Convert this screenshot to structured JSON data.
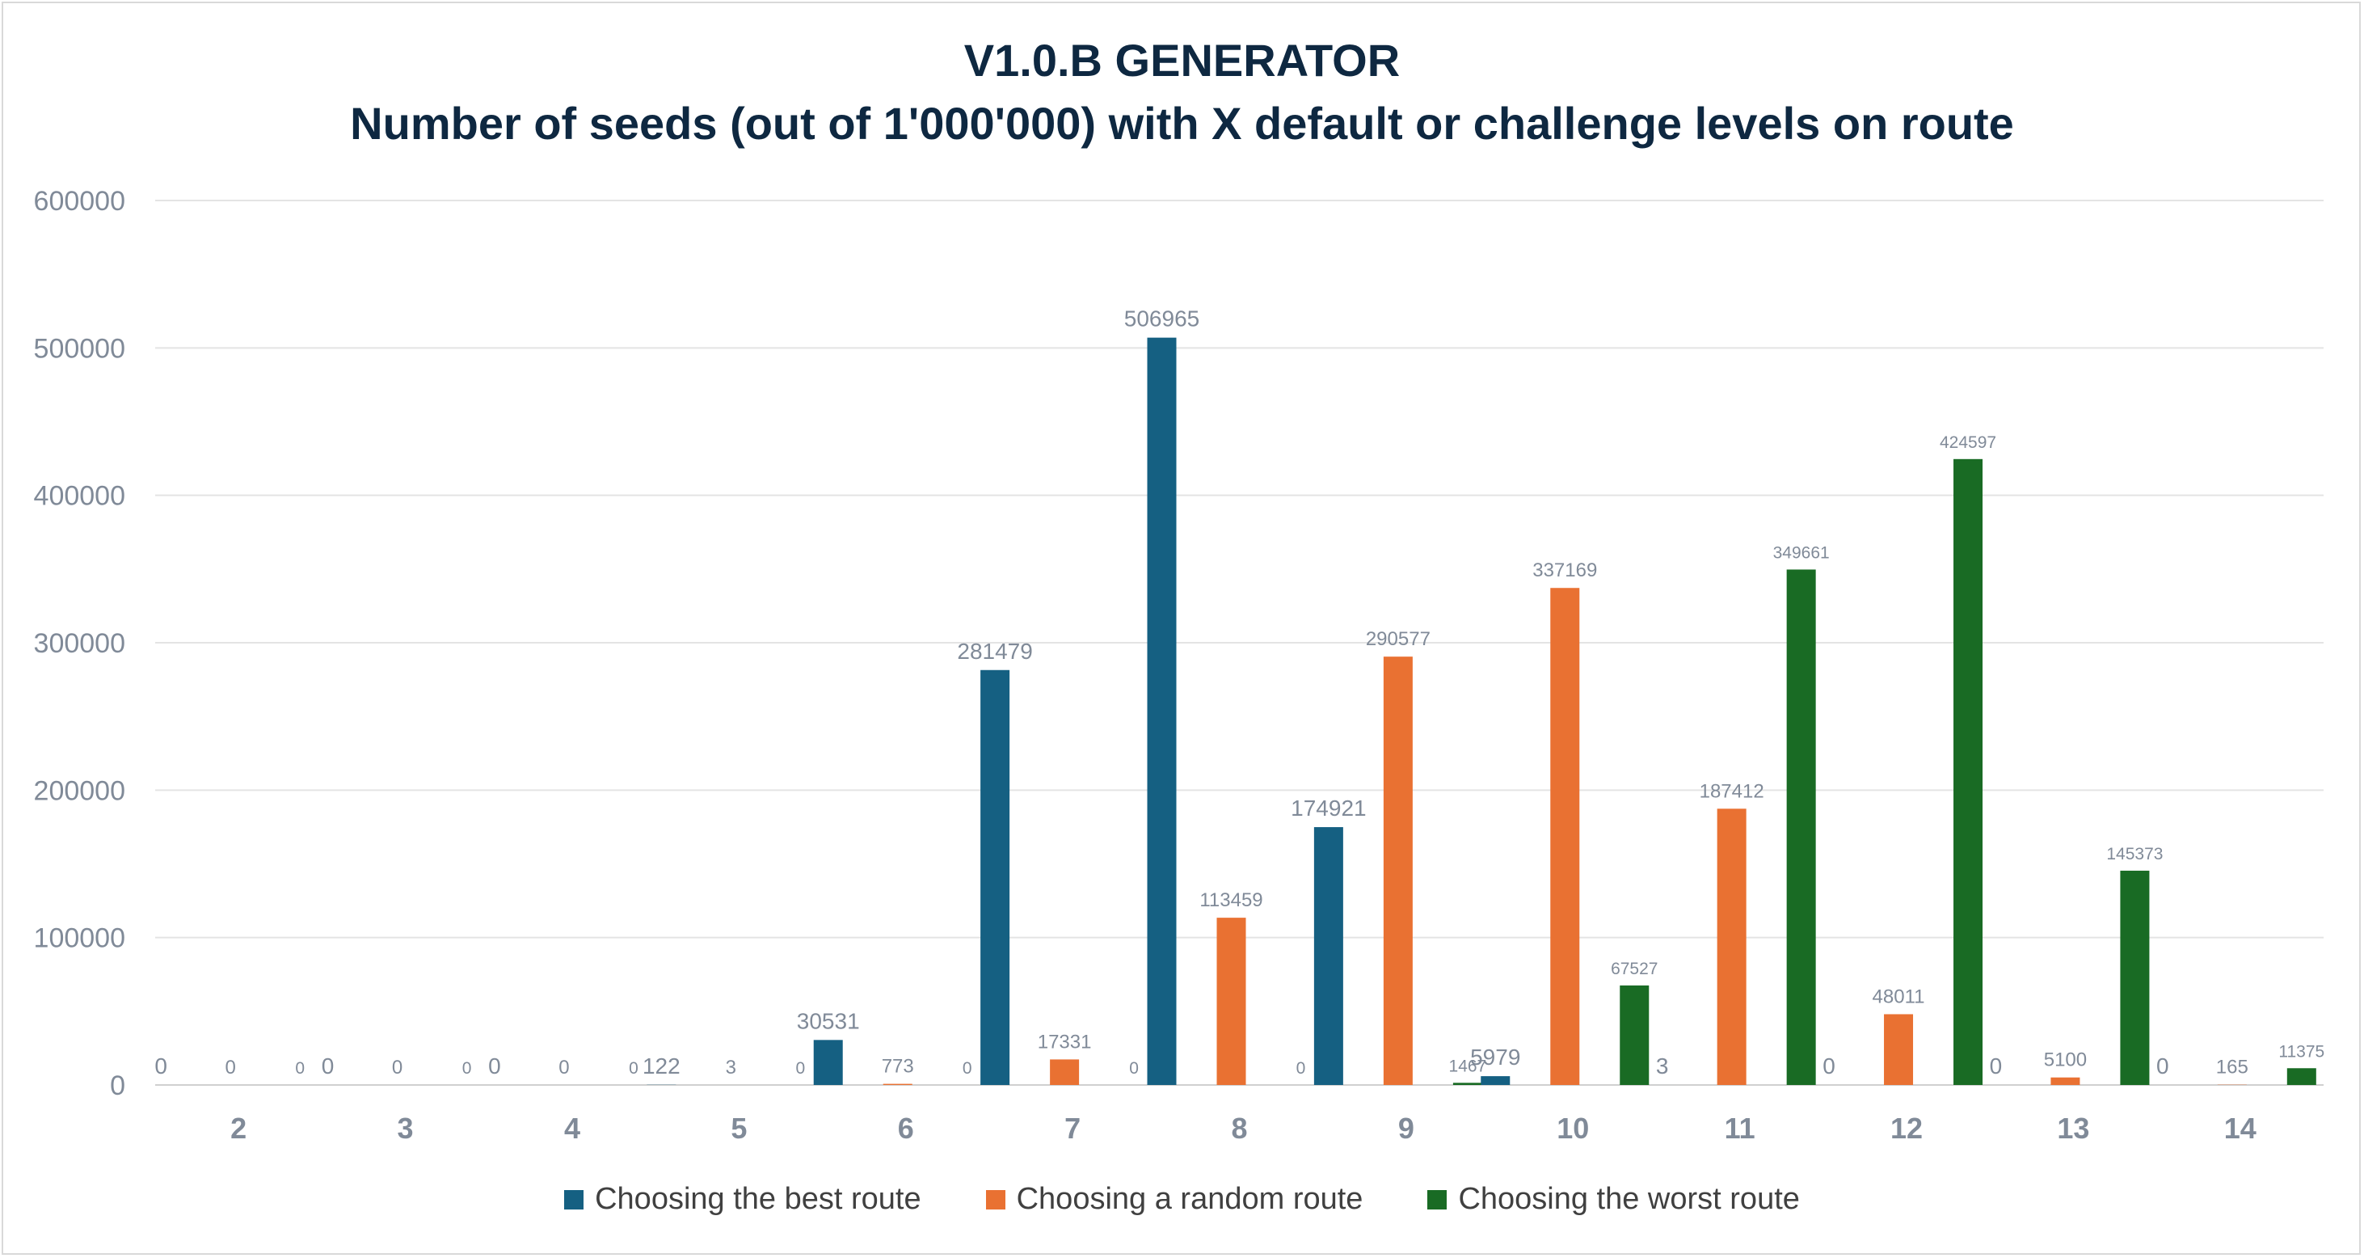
{
  "chart_data": {
    "type": "bar",
    "title": "V1.0.B GENERATOR",
    "subtitle": "Number of seeds (out of 1'000'000) with X default or challenge levels on route",
    "categories": [
      "2",
      "3",
      "4",
      "5",
      "6",
      "7",
      "8",
      "9",
      "10",
      "11",
      "12",
      "13",
      "14"
    ],
    "series": [
      {
        "name": "Choosing the best route",
        "color": "#156082",
        "values": [
          0,
          0,
          0,
          122,
          30531,
          281479,
          506965,
          174921,
          5979,
          3,
          0,
          0,
          0
        ]
      },
      {
        "name": "Choosing a random route",
        "color": "#e97132",
        "values": [
          0,
          0,
          0,
          3,
          773,
          17331,
          113459,
          290577,
          337169,
          187412,
          48011,
          5100,
          165
        ]
      },
      {
        "name": "Choosing the worst route",
        "color": "#196b24",
        "values": [
          0,
          0,
          0,
          0,
          0,
          0,
          0,
          1467,
          67527,
          349661,
          424597,
          145373,
          11375
        ]
      }
    ],
    "ylim": [
      0,
      600000
    ],
    "yticks": [
      0,
      100000,
      200000,
      300000,
      400000,
      500000,
      600000
    ],
    "grid": true,
    "legend_position": "bottom"
  }
}
